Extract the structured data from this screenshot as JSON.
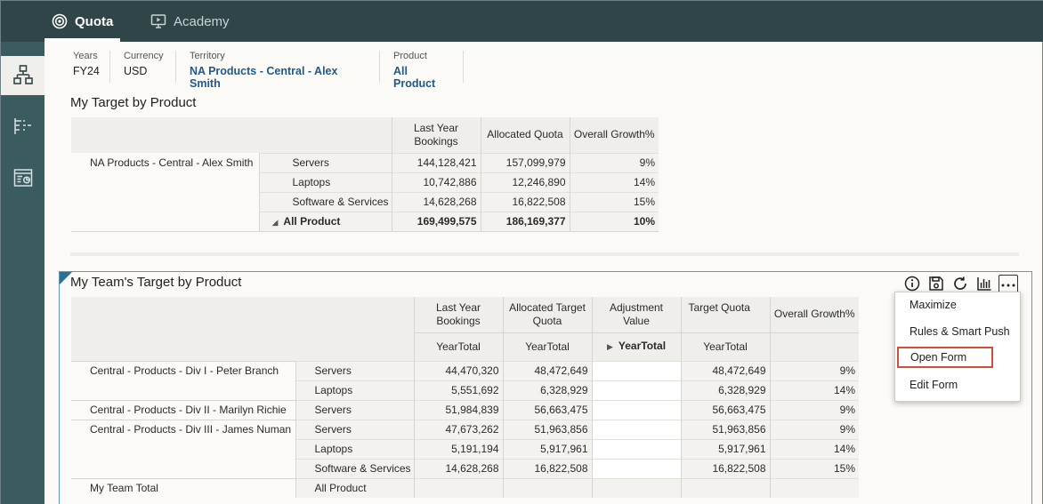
{
  "nav": {
    "tabs": [
      {
        "label": "Quota",
        "icon": "target-icon",
        "active": true
      },
      {
        "label": "Academy",
        "icon": "monitor-play-icon",
        "active": false
      }
    ]
  },
  "rail": {
    "items": [
      {
        "icon": "hierarchy-icon",
        "active": true
      },
      {
        "icon": "outline-list-icon",
        "active": false
      },
      {
        "icon": "report-icon",
        "active": false
      }
    ]
  },
  "pov": {
    "years": {
      "label": "Years",
      "value": "FY24"
    },
    "currency": {
      "label": "Currency",
      "value": "USD"
    },
    "territory": {
      "label": "Territory",
      "value": "NA Products - Central - Alex Smith"
    },
    "product": {
      "label": "Product",
      "value": "All Product"
    }
  },
  "target_by_product": {
    "title": "My Target by Product",
    "headers": [
      "Last Year Bookings",
      "Allocated Quota",
      "Overall Growth%"
    ],
    "member": "NA Products - Central - Alex Smith",
    "rows": [
      {
        "product": "Servers",
        "values": [
          "144,128,421",
          "157,099,979",
          "9%"
        ]
      },
      {
        "product": "Laptops",
        "values": [
          "10,742,886",
          "12,246,890",
          "14%"
        ]
      },
      {
        "product": "Software & Services",
        "values": [
          "14,628,268",
          "16,822,508",
          "15%"
        ]
      },
      {
        "product": "All Product",
        "values": [
          "169,499,575",
          "186,169,377",
          "10%"
        ]
      }
    ]
  },
  "team_target": {
    "title": "My Team's Target by Product",
    "headers": [
      "Last Year Bookings",
      "Allocated Target Quota",
      "Adjustment Value",
      "Target Quota",
      "Overall Growth%"
    ],
    "subheaders": [
      "YearTotal",
      "YearTotal",
      "YearTotal",
      "YearTotal"
    ],
    "rows": [
      {
        "member": "Central - Products - Div I - Peter Branch",
        "product": "Servers",
        "values": [
          "44,470,320",
          "48,472,649",
          "",
          "48,472,649",
          "9%"
        ]
      },
      {
        "member": "",
        "product": "Laptops",
        "values": [
          "5,551,692",
          "6,328,929",
          "",
          "6,328,929",
          "14%"
        ]
      },
      {
        "member": "Central - Products - Div II - Marilyn Richie",
        "product": "Servers",
        "values": [
          "51,984,839",
          "56,663,475",
          "",
          "56,663,475",
          "9%"
        ]
      },
      {
        "member": "Central - Products - Div III - James Numan",
        "product": "Servers",
        "values": [
          "47,673,262",
          "51,963,856",
          "",
          "51,963,856",
          "9%"
        ]
      },
      {
        "member": "",
        "product": "Laptops",
        "values": [
          "5,191,194",
          "5,917,961",
          "",
          "5,917,961",
          "14%"
        ]
      },
      {
        "member": "",
        "product": "Software & Services",
        "values": [
          "14,628,268",
          "16,822,508",
          "",
          "16,822,508",
          "15%"
        ]
      },
      {
        "member": "My Team Total",
        "product": "All Product",
        "values": [
          "",
          "",
          "",
          "",
          ""
        ]
      }
    ]
  },
  "toolbar": {
    "icons": [
      "info-icon",
      "save-icon",
      "refresh-icon",
      "chart-icon",
      "more-icon"
    ]
  },
  "menu": {
    "items": [
      "Maximize",
      "Rules & Smart Push",
      "Open Form",
      "Edit Form"
    ]
  }
}
